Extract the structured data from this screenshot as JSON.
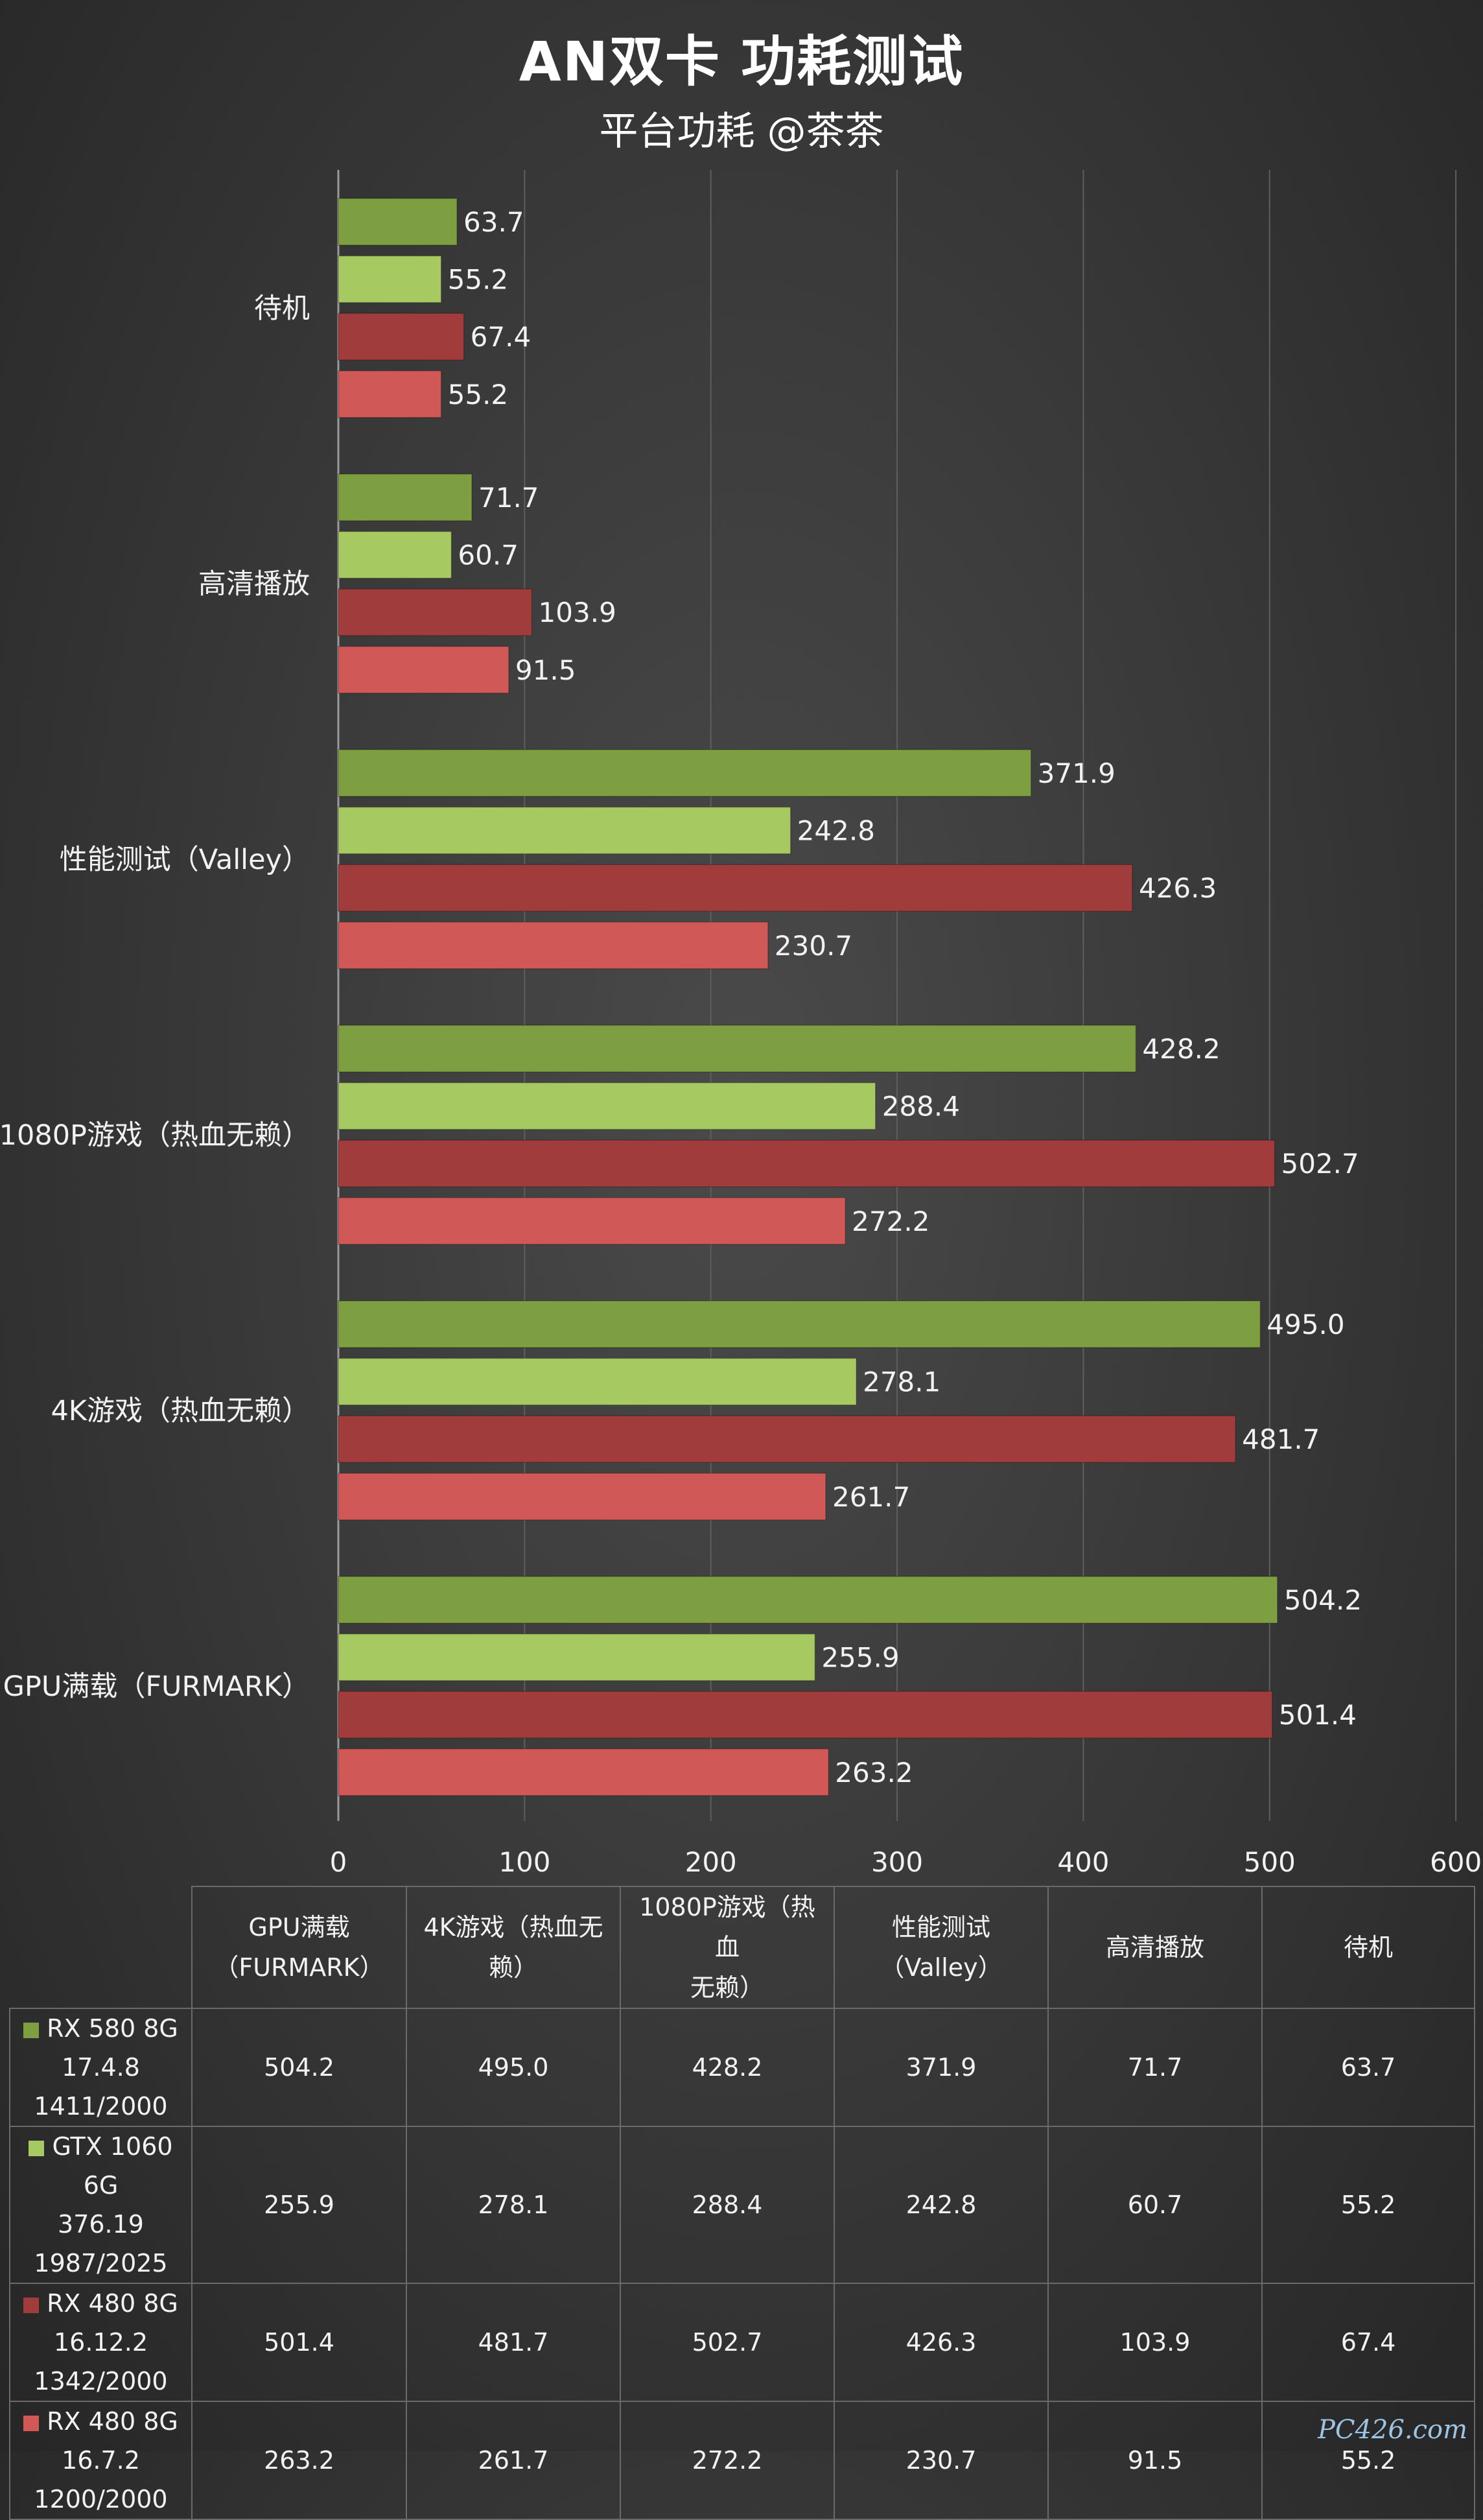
{
  "title": "AN双卡 功耗测试",
  "subtitle": "平台功耗 @茶茶",
  "chart_data": {
    "type": "bar",
    "orientation": "horizontal",
    "categories": [
      "待机",
      "高清播放",
      "性能测试（Valley）",
      "1080P游戏（热血无赖）",
      "4K游戏（热血无赖）",
      "GPU满载（FURMARK）"
    ],
    "series": [
      {
        "name": "RX 580 8G 17.4.8 1411/2000",
        "color": "#7d9e41",
        "values": [
          63.7,
          71.7,
          371.9,
          428.2,
          495.0,
          504.2
        ]
      },
      {
        "name": "GTX 1060 6G 376.19 1987/2025",
        "color": "#a6c962",
        "values": [
          55.2,
          60.7,
          242.8,
          288.4,
          278.1,
          255.9
        ]
      },
      {
        "name": "RX 480 8G 16.12.2 1342/2000",
        "color": "#a03c3b",
        "values": [
          67.4,
          103.9,
          426.3,
          502.7,
          481.7,
          501.4
        ]
      },
      {
        "name": "RX 480 8G 16.7.2 1200/2000",
        "color": "#d05957",
        "values": [
          55.2,
          91.5,
          230.7,
          272.2,
          261.7,
          263.2
        ]
      }
    ],
    "value_labels": [
      [
        "63.7",
        "71.7",
        "371.9",
        "428.2",
        "495.0",
        "504.2"
      ],
      [
        "55.2",
        "60.7",
        "242.8",
        "288.4",
        "278.1",
        "255.9"
      ],
      [
        "67.4",
        "103.9",
        "426.3",
        "502.7",
        "481.7",
        "501.4"
      ],
      [
        "55.2",
        "91.5",
        "230.7",
        "272.2",
        "261.7",
        "263.2"
      ]
    ],
    "xlim": [
      0,
      600
    ],
    "x_ticks": [
      "0",
      "100",
      "200",
      "300",
      "400",
      "500",
      "600"
    ],
    "grid": true,
    "legend": "table-below"
  },
  "table": {
    "headers": [
      [
        "GPU满载",
        "（FURMARK）"
      ],
      [
        "4K游戏（热血无",
        "赖）"
      ],
      [
        "1080P游戏（热血",
        "无赖）"
      ],
      [
        "性能测试",
        "（Valley）"
      ],
      [
        "高清播放"
      ],
      [
        "待机"
      ]
    ],
    "rows": [
      {
        "line1": "RX 580 8G",
        "line2": "17.4.8",
        "line3": "1411/2000",
        "swatch": "#7d9e41",
        "cells": [
          "504.2",
          "495.0",
          "428.2",
          "371.9",
          "71.7",
          "63.7"
        ]
      },
      {
        "line1": "GTX 1060 6G",
        "line2": "376.19",
        "line3": "1987/2025",
        "swatch": "#a6c962",
        "cells": [
          "255.9",
          "278.1",
          "288.4",
          "242.8",
          "60.7",
          "55.2"
        ]
      },
      {
        "line1": "RX 480 8G",
        "line2": "16.12.2",
        "line3": "1342/2000",
        "swatch": "#a03c3b",
        "cells": [
          "501.4",
          "481.7",
          "502.7",
          "426.3",
          "103.9",
          "67.4"
        ]
      },
      {
        "line1": "RX 480 8G",
        "line2": "16.7.2",
        "line3": "1200/2000",
        "swatch": "#d05957",
        "cells": [
          "263.2",
          "261.7",
          "272.2",
          "230.7",
          "91.5",
          "55.2"
        ]
      }
    ]
  },
  "watermark": "PC426.com"
}
